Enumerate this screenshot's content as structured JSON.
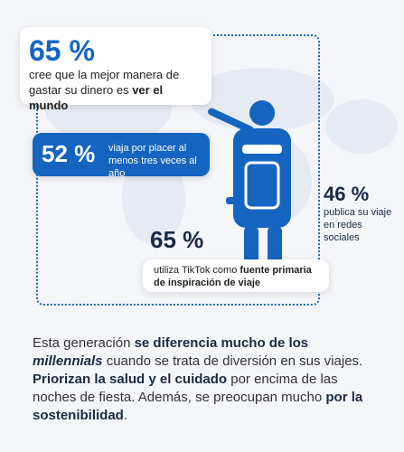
{
  "stat1": {
    "value": "65 %",
    "text_pre": "cree que la mejor manera de gastar su dinero es ",
    "text_bold": "ver el mundo"
  },
  "stat2": {
    "value": "52 %",
    "text": "viaja por placer al menos tres veces al año"
  },
  "stat3": {
    "value": "46 %",
    "text": "publica su viaje en redes sociales"
  },
  "stat4": {
    "value": "65 %",
    "text_pre": "utiliza TikTok como ",
    "text_bold": "fuente primaria de inspiración de viaje"
  },
  "paragraph": {
    "p1": "Esta generación ",
    "b1": "se diferencia mucho de los ",
    "b1i": "millennials",
    "p2": " cuando se trata de diversión en sus viajes. ",
    "b2": "Priorizan la salud y el cuidado",
    "p3": " por encima de las noches de fiesta. Además, se preocupan mucho ",
    "b3": "por la sostenibilidad",
    "p4": "."
  },
  "colors": {
    "accent": "#1565c0",
    "dark": "#1a2a44"
  },
  "icons": [
    "traveler-icon",
    "world-map-icon"
  ]
}
